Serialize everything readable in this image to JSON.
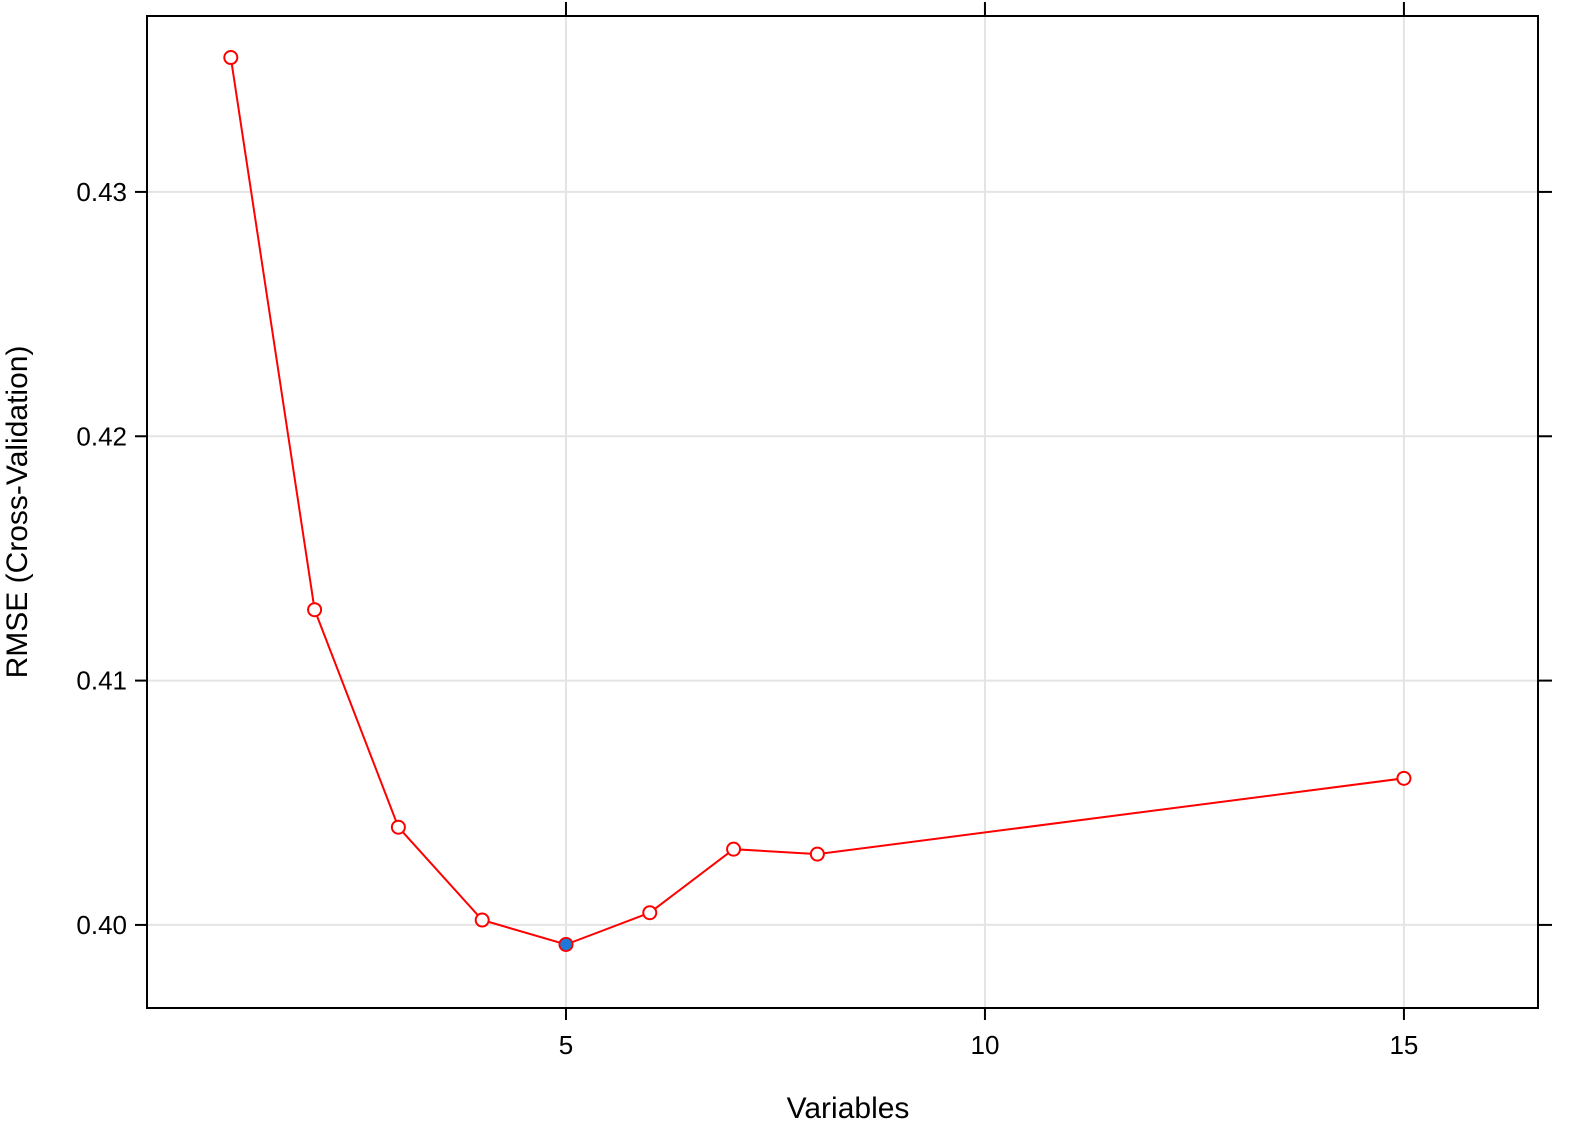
{
  "chart_data": {
    "type": "line",
    "title": "",
    "xlabel": "Variables",
    "ylabel": "RMSE (Cross-Validation)",
    "xlim": [
      0.0,
      16.6
    ],
    "ylim": [
      0.3966,
      0.4372
    ],
    "x_ticks": [
      5,
      10,
      15
    ],
    "y_ticks": [
      0.4,
      0.41,
      0.42,
      0.43
    ],
    "y_tick_labels": [
      "0.40",
      "0.41",
      "0.42",
      "0.43"
    ],
    "grid": true,
    "series": [
      {
        "x": [
          1,
          2,
          3,
          4,
          5,
          6,
          7,
          8,
          15
        ],
        "y": [
          0.4355,
          0.4129,
          0.404,
          0.4002,
          0.3992,
          0.4005,
          0.4031,
          0.4029,
          0.406
        ],
        "color": "#ff0000",
        "marker": "open-circle"
      }
    ],
    "highlight": {
      "x": 5,
      "y": 0.3992,
      "color": "#1e78d7"
    }
  }
}
